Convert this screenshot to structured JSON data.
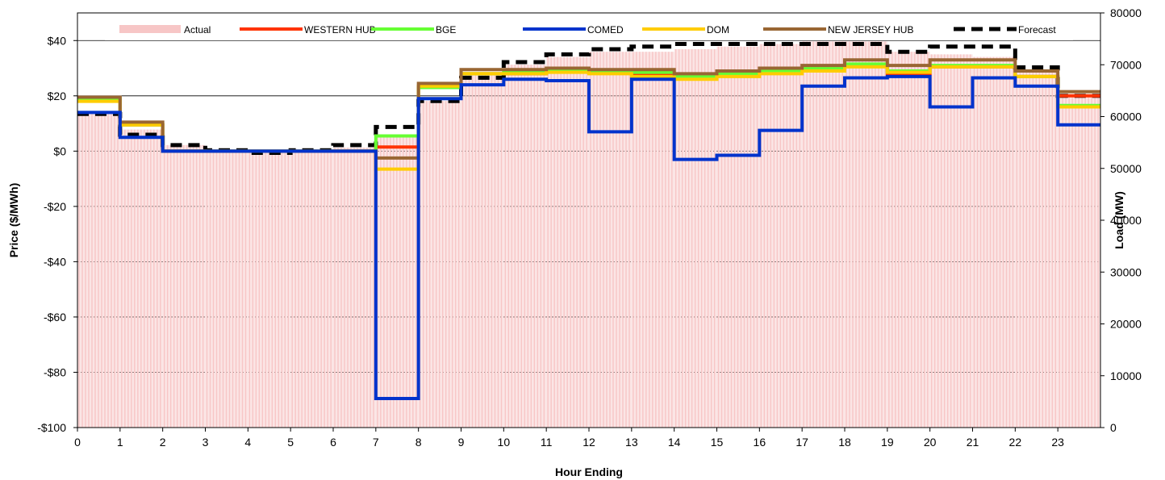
{
  "chart_data": {
    "type": "line",
    "xlabel": "Hour Ending",
    "ylabel": "Price ($/MWh)",
    "y2label": "Load (MW)",
    "xlim": [
      0,
      24
    ],
    "ylim": [
      -100,
      50
    ],
    "y2lim": [
      0,
      80000
    ],
    "x_ticks": [
      0,
      1,
      2,
      3,
      4,
      5,
      6,
      7,
      8,
      9,
      10,
      11,
      12,
      13,
      14,
      15,
      16,
      17,
      18,
      19,
      20,
      21,
      22,
      23
    ],
    "y_ticks": [
      -100,
      -80,
      -60,
      -40,
      -20,
      0,
      20,
      40
    ],
    "y_tick_labels": [
      "-$100",
      "-$80",
      "-$60",
      "-$40",
      "-$20",
      "$0",
      "$20",
      "$40"
    ],
    "y2_ticks": [
      0,
      10000,
      20000,
      30000,
      40000,
      50000,
      60000,
      70000,
      80000
    ],
    "y2_tick_labels": [
      "0",
      "10000",
      "20000",
      "30000",
      "40000",
      "50000",
      "60000",
      "70000",
      "80000"
    ],
    "grid": true,
    "legend_position": "top",
    "hours": [
      0,
      1,
      2,
      3,
      4,
      5,
      6,
      7,
      8,
      9,
      10,
      11,
      12,
      13,
      14,
      15,
      16,
      17,
      18,
      19,
      20,
      21,
      22,
      23
    ],
    "series": [
      {
        "name": "Actual",
        "axis": "right",
        "style": "bars",
        "color": "#f7c6c6",
        "values": [
          60500,
          57500,
          54500,
          53500,
          53000,
          53000,
          54000,
          56500,
          63000,
          68000,
          70000,
          71500,
          72500,
          72500,
          73000,
          73500,
          74000,
          74500,
          74500,
          72500,
          72000,
          71500,
          68500,
          64000
        ]
      },
      {
        "name": "WESTERN HUB",
        "axis": "left",
        "style": "line",
        "color": "#ff3300",
        "values": [
          19,
          9.5,
          0,
          0,
          0,
          0,
          0,
          1.5,
          23,
          28,
          28,
          29,
          28.5,
          28,
          27,
          28,
          29,
          29.5,
          31,
          28,
          30.5,
          30.5,
          27,
          20
        ]
      },
      {
        "name": "BGE",
        "axis": "left",
        "style": "line",
        "color": "#66ff33",
        "values": [
          19,
          9.5,
          0,
          0,
          0,
          0,
          0,
          5.5,
          23,
          28,
          28.5,
          29,
          29,
          28.5,
          27,
          28,
          29,
          30,
          31.5,
          29,
          31,
          31,
          27,
          16.5
        ]
      },
      {
        "name": "COMED",
        "axis": "left",
        "style": "line",
        "color": "#0033cc",
        "values": [
          14,
          5,
          0,
          0,
          0,
          0,
          0,
          -89.5,
          19,
          24,
          26,
          25.5,
          7,
          26,
          -3,
          -1.5,
          7.5,
          23.5,
          26.5,
          27,
          16,
          26.5,
          23.5,
          9.5
        ]
      },
      {
        "name": "DOM",
        "axis": "left",
        "style": "line",
        "color": "#ffcc00",
        "values": [
          18,
          9.5,
          0,
          0,
          0,
          0,
          0,
          -6.5,
          23.5,
          28,
          28,
          28.5,
          28,
          27,
          26,
          27,
          28,
          29,
          30.5,
          28.5,
          30.5,
          30.5,
          27,
          16
        ]
      },
      {
        "name": "NEW JERSEY HUB",
        "axis": "left",
        "style": "line",
        "color": "#996633",
        "values": [
          19.5,
          10.5,
          0,
          0,
          0,
          0,
          0,
          -2.5,
          24.5,
          29.5,
          29.5,
          30,
          29.5,
          29.5,
          28,
          29,
          30,
          31,
          33,
          31,
          33,
          33,
          29,
          21.5
        ]
      },
      {
        "name": "Forecast",
        "axis": "right",
        "style": "dashed",
        "color": "#000000",
        "values": [
          60500,
          56500,
          54500,
          53500,
          53000,
          53500,
          54500,
          58000,
          63000,
          67500,
          70500,
          72000,
          73000,
          73500,
          74000,
          74000,
          74000,
          74000,
          74000,
          72500,
          73500,
          73500,
          69500,
          64000
        ]
      }
    ]
  }
}
